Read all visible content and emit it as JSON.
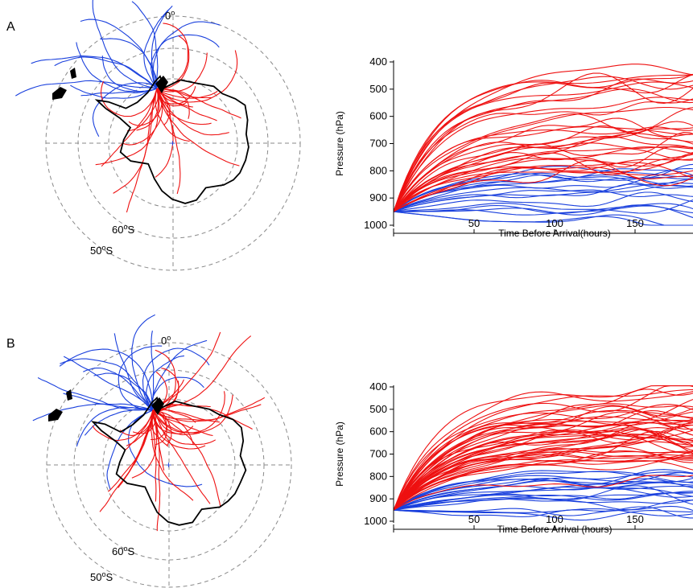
{
  "panels": [
    {
      "label": "A",
      "map": {
        "top_label": "0",
        "lat_labels": [
          "60",
          "50"
        ],
        "lat_suffix": "S",
        "degree_sign": "o"
      },
      "profile": {
        "ylabel": "Pressure (hPa)",
        "xlabel": "Time Before Arrival(hours)"
      }
    },
    {
      "label": "B",
      "map": {
        "top_label": "0",
        "lat_labels": [
          "60",
          "50"
        ],
        "lat_suffix": "S",
        "degree_sign": "o"
      },
      "profile": {
        "ylabel": "Pressure (hPa)",
        "xlabel": "Time Before Arrival (hours)"
      }
    }
  ],
  "colors": {
    "red": "#ee1111",
    "blue": "#1a40dd",
    "grid": "#8a8a8a",
    "coast": "#000000"
  },
  "chart_data": [
    {
      "type": "line",
      "ylabel": "Pressure (hPa)",
      "xlabel": "Time Before Arrival(hours)",
      "xlim": [
        0,
        190
      ],
      "ylim": [
        1000,
        400
      ],
      "y_reversed": true,
      "xticks": [
        50,
        100,
        150
      ],
      "yticks": [
        400,
        500,
        600,
        700,
        800,
        900,
        1000
      ],
      "series_groups": [
        {
          "color": "red",
          "count": 34,
          "start_pressure": 950,
          "typical_end_range": [
            420,
            800
          ]
        },
        {
          "color": "blue",
          "count": 18,
          "start_pressure": 950,
          "typical_end_range": [
            780,
            990
          ]
        }
      ]
    },
    {
      "type": "line",
      "ylabel": "Pressure (hPa)",
      "xlabel": "Time Before Arrival (hours)",
      "xlim": [
        0,
        190
      ],
      "ylim": [
        1000,
        400
      ],
      "y_reversed": true,
      "xticks": [
        50,
        100,
        150
      ],
      "yticks": [
        400,
        500,
        600,
        700,
        800,
        900,
        1000
      ],
      "series_groups": [
        {
          "color": "red",
          "count": 46,
          "start_pressure": 950,
          "typical_end_range": [
            400,
            820
          ]
        },
        {
          "color": "blue",
          "count": 22,
          "start_pressure": 950,
          "typical_end_range": [
            780,
            990
          ]
        }
      ]
    }
  ]
}
